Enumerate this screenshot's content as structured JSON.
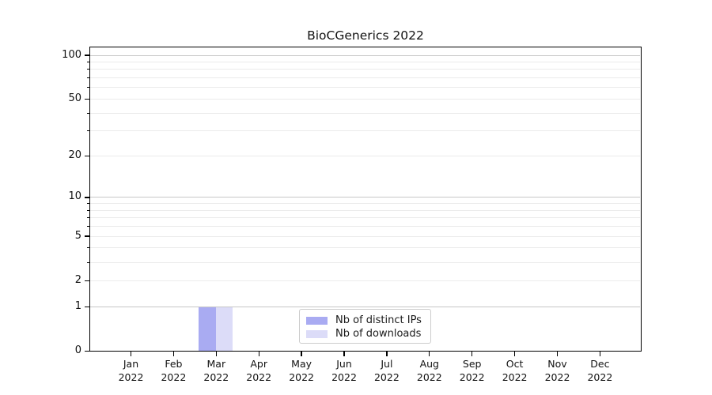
{
  "chart_data": {
    "type": "bar",
    "title": "BioCGenerics 2022",
    "x_months": [
      "Jan",
      "Feb",
      "Mar",
      "Apr",
      "May",
      "Jun",
      "Jul",
      "Aug",
      "Sep",
      "Oct",
      "Nov",
      "Dec"
    ],
    "x_year_label": "2022",
    "categories": [
      "Jan 2022",
      "Feb 2022",
      "Mar 2022",
      "Apr 2022",
      "May 2022",
      "Jun 2022",
      "Jul 2022",
      "Aug 2022",
      "Sep 2022",
      "Oct 2022",
      "Nov 2022",
      "Dec 2022"
    ],
    "series": [
      {
        "name": "Nb of distinct IPs",
        "color": "#a9abf2",
        "values": [
          0,
          0,
          1,
          0,
          0,
          0,
          0,
          0,
          0,
          0,
          0,
          0
        ]
      },
      {
        "name": "Nb of downloads",
        "color": "#dcdcf8",
        "values": [
          0,
          0,
          1,
          0,
          0,
          0,
          0,
          0,
          0,
          0,
          0,
          0
        ]
      }
    ],
    "y_scale": "log1p",
    "ylim": [
      0,
      113
    ],
    "y_ticks_labeled": [
      0,
      1,
      2,
      5,
      10,
      20,
      50,
      100
    ],
    "y_major_grid": [
      1,
      10,
      100
    ],
    "y_minor_grid": [
      2,
      3,
      4,
      5,
      6,
      7,
      8,
      9,
      20,
      30,
      40,
      50,
      60,
      70,
      80,
      90
    ],
    "grid": "on",
    "legend_position": "lower center"
  },
  "colors": {
    "major_grid": "#c6c6c6",
    "minor_grid": "#ebebeb",
    "spine": "#000000",
    "background": "#ffffff"
  }
}
